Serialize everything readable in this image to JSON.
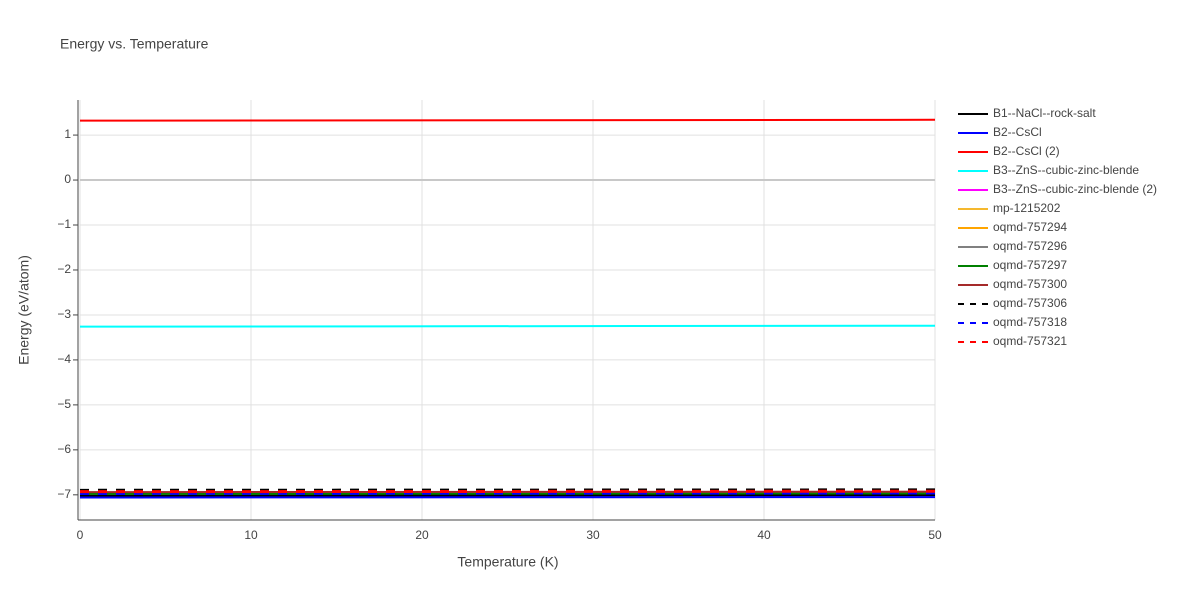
{
  "chart_data": {
    "type": "line",
    "title": "Energy vs. Temperature",
    "x_label": "Temperature (K)",
    "y_label": "Energy (eV/atom)",
    "x": [
      0,
      50
    ],
    "xlim": [
      0,
      50
    ],
    "xticks": [
      0,
      10,
      20,
      30,
      40,
      50
    ],
    "ylim": [
      -7.56,
      1.78
    ],
    "yticks": [
      {
        "value": -7,
        "label": "−7"
      },
      {
        "value": -6,
        "label": "−6"
      },
      {
        "value": -5,
        "label": "−5"
      },
      {
        "value": -4,
        "label": "−4"
      },
      {
        "value": -3,
        "label": "−3"
      },
      {
        "value": -2,
        "label": "−2"
      },
      {
        "value": -1,
        "label": "−1"
      },
      0,
      1
    ],
    "grid": true,
    "legend": "right",
    "series": [
      {
        "name": "B1--NaCl--rock-salt",
        "color": "#000000",
        "dash": "solid",
        "values": [
          -7.02,
          -7.01
        ]
      },
      {
        "name": "B2--CsCl",
        "color": "#0000ff",
        "dash": "solid",
        "values": [
          -7.06,
          -7.05
        ]
      },
      {
        "name": "B2--CsCl (2)",
        "color": "#ff0000",
        "dash": "solid",
        "values": [
          1.32,
          1.34
        ]
      },
      {
        "name": "B3--ZnS--cubic-zinc-blende",
        "color": "#00ffff",
        "dash": "solid",
        "values": [
          -3.26,
          -3.24
        ]
      },
      {
        "name": "B3--ZnS--cubic-zinc-blende (2)",
        "color": "#ff00ff",
        "dash": "solid",
        "values": [
          -6.96,
          -6.95
        ]
      },
      {
        "name": "mp-1215202",
        "color": "#f5b82e",
        "dash": "solid",
        "values": [
          -6.95,
          -6.94
        ]
      },
      {
        "name": "oqmd-757294",
        "color": "#ffa500",
        "dash": "solid",
        "values": [
          -6.95,
          -6.94
        ]
      },
      {
        "name": "oqmd-757296",
        "color": "#808080",
        "dash": "solid",
        "values": [
          -6.96,
          -6.95
        ]
      },
      {
        "name": "oqmd-757297",
        "color": "#008000",
        "dash": "solid",
        "values": [
          -6.98,
          -6.97
        ]
      },
      {
        "name": "oqmd-757300",
        "color": "#a52a2a",
        "dash": "solid",
        "values": [
          -6.94,
          -6.93
        ]
      },
      {
        "name": "oqmd-757306",
        "color": "#000000",
        "dash": "dash",
        "values": [
          -6.9,
          -6.89
        ]
      },
      {
        "name": "oqmd-757318",
        "color": "#0000ff",
        "dash": "dash",
        "values": [
          -6.97,
          -6.96
        ]
      },
      {
        "name": "oqmd-757321",
        "color": "#ff0000",
        "dash": "dash",
        "values": [
          -6.93,
          -6.92
        ]
      }
    ]
  }
}
